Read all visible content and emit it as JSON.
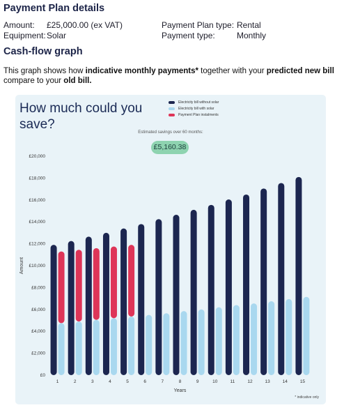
{
  "details": {
    "heading": "Payment Plan details",
    "amount_label": "Amount:",
    "amount_value": "£25,000.00 (ex VAT)",
    "equipment_label": "Equipment:",
    "equipment_value": "Solar",
    "plan_type_label": "Payment Plan type:",
    "plan_type_value": "Rental",
    "payment_type_label": "Payment type:",
    "payment_type_value": "Monthly"
  },
  "cashflow": {
    "heading": "Cash-flow graph",
    "intro_1": "This graph shows how ",
    "intro_2": "indicative monthly payments*",
    "intro_3": " together with your ",
    "intro_4": "predicted new bill",
    "intro_5": " compare to your ",
    "intro_6": "old bill."
  },
  "panel": {
    "title": "How much could you save?",
    "savings_label": "Estimated savings over 60 months:",
    "savings_value": "£5,160.38",
    "footnote": "* indicative only"
  },
  "chart_data": {
    "type": "bar",
    "xlabel": "Years",
    "ylabel": "Amount",
    "ylim": [
      0,
      20000
    ],
    "yticks": [
      0,
      2000,
      4000,
      6000,
      8000,
      10000,
      12000,
      14000,
      16000,
      18000,
      20000
    ],
    "ytick_labels": [
      "£0",
      "£2,000",
      "£4,000",
      "£6,000",
      "£8,000",
      "£10,000",
      "£12,000",
      "£14,000",
      "£16,000",
      "£18,000",
      "£20,000"
    ],
    "categories": [
      "1",
      "2",
      "3",
      "4",
      "5",
      "6",
      "7",
      "8",
      "9",
      "10",
      "11",
      "12",
      "13",
      "14",
      "15"
    ],
    "legend_position": "top-right",
    "series": [
      {
        "name": "Electricity bill without solar",
        "color": "#1c2650",
        "values": [
          11900,
          12250,
          12650,
          13000,
          13400,
          13800,
          14250,
          14650,
          15100,
          15550,
          16050,
          16500,
          17050,
          17550,
          18100
        ]
      },
      {
        "name": "Electricity bill with solar",
        "color": "#a9d8ef",
        "values": [
          4750,
          4900,
          5050,
          5200,
          5350,
          5500,
          5650,
          5850,
          6000,
          6200,
          6400,
          6550,
          6750,
          6950,
          7150
        ]
      },
      {
        "name": "Payment Plan instalments",
        "color": "#de3558",
        "values": [
          6550,
          6550,
          6550,
          6550,
          6550,
          0,
          0,
          0,
          0,
          0,
          0,
          0,
          0,
          0,
          0
        ]
      }
    ]
  }
}
